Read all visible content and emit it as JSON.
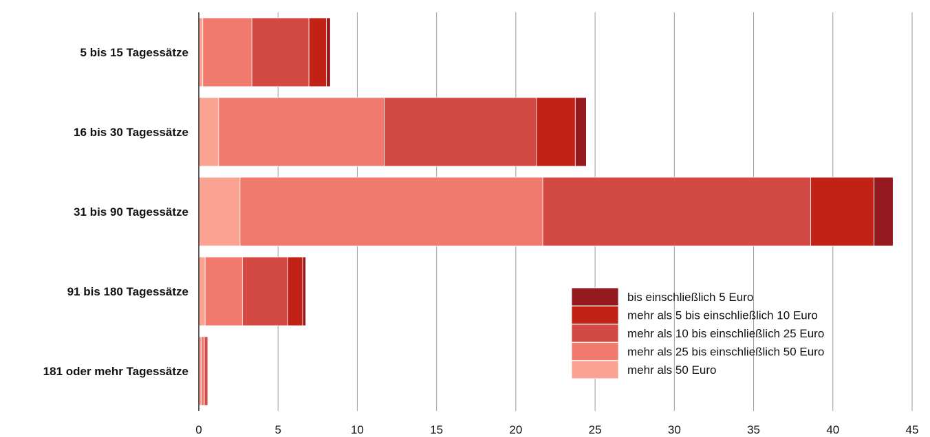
{
  "chart_data": {
    "type": "bar",
    "orientation": "horizontal",
    "stacked": true,
    "title": "",
    "xlabel": "",
    "ylabel": "",
    "xlim": [
      0,
      45
    ],
    "xticks": [
      0,
      5,
      10,
      15,
      20,
      25,
      30,
      35,
      40,
      45
    ],
    "grid": "vertical",
    "legend_position": "right",
    "categories": [
      "5 bis 15 Tagessätze",
      "16 bis 30 Tagessätze",
      "31 bis 90 Tagessätze",
      "91 bis 180 Tagessätze",
      "181 oder mehr Tagessätze"
    ],
    "series": [
      {
        "name": "mehr als 50 Euro",
        "color": "#fba392",
        "values": [
          0.25,
          1.25,
          2.6,
          0.4,
          0.15
        ]
      },
      {
        "name": "mehr als 25 bis einschließlich 50 Euro",
        "color": "#f07a6e",
        "values": [
          3.1,
          10.45,
          19.1,
          2.35,
          0.2
        ]
      },
      {
        "name": "mehr als 10 bis einschließlich 25 Euro",
        "color": "#d34a44",
        "values": [
          3.6,
          9.6,
          16.9,
          2.85,
          0.22
        ]
      },
      {
        "name": "mehr als 5 bis einschließlich 10 Euro",
        "color": "#c12215",
        "values": [
          1.1,
          2.45,
          4.0,
          0.95,
          0.03
        ]
      },
      {
        "name": "bis einschließlich 5 Euro",
        "color": "#941a20",
        "values": [
          0.25,
          0.7,
          1.2,
          0.2,
          0.0
        ]
      }
    ],
    "legend_order": [
      "bis einschließlich 5 Euro",
      "mehr als 5 bis einschließlich 10 Euro",
      "mehr als 10 bis einschließlich 25 Euro",
      "mehr als 25 bis einschließlich 50 Euro",
      "mehr als 50 Euro"
    ]
  }
}
